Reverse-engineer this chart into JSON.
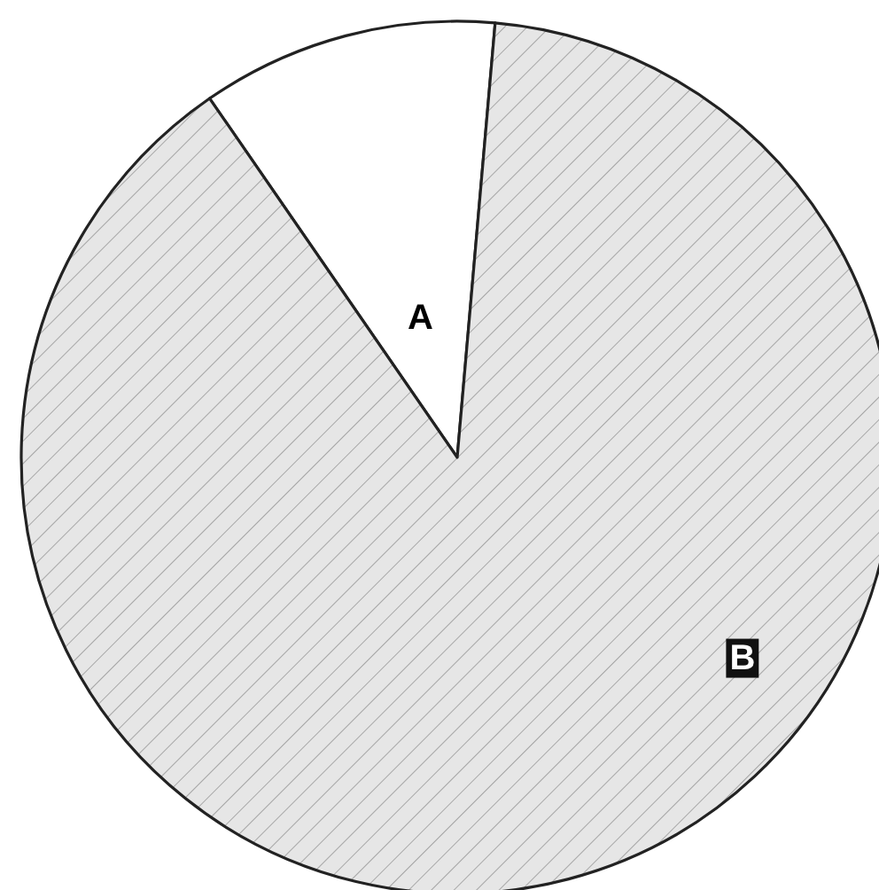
{
  "chart_data": {
    "type": "pie",
    "categories": [
      "A",
      "B"
    ],
    "values": [
      11,
      89
    ],
    "colors": [
      "#ffffff",
      "#e6e6e6"
    ],
    "legend": false
  }
}
